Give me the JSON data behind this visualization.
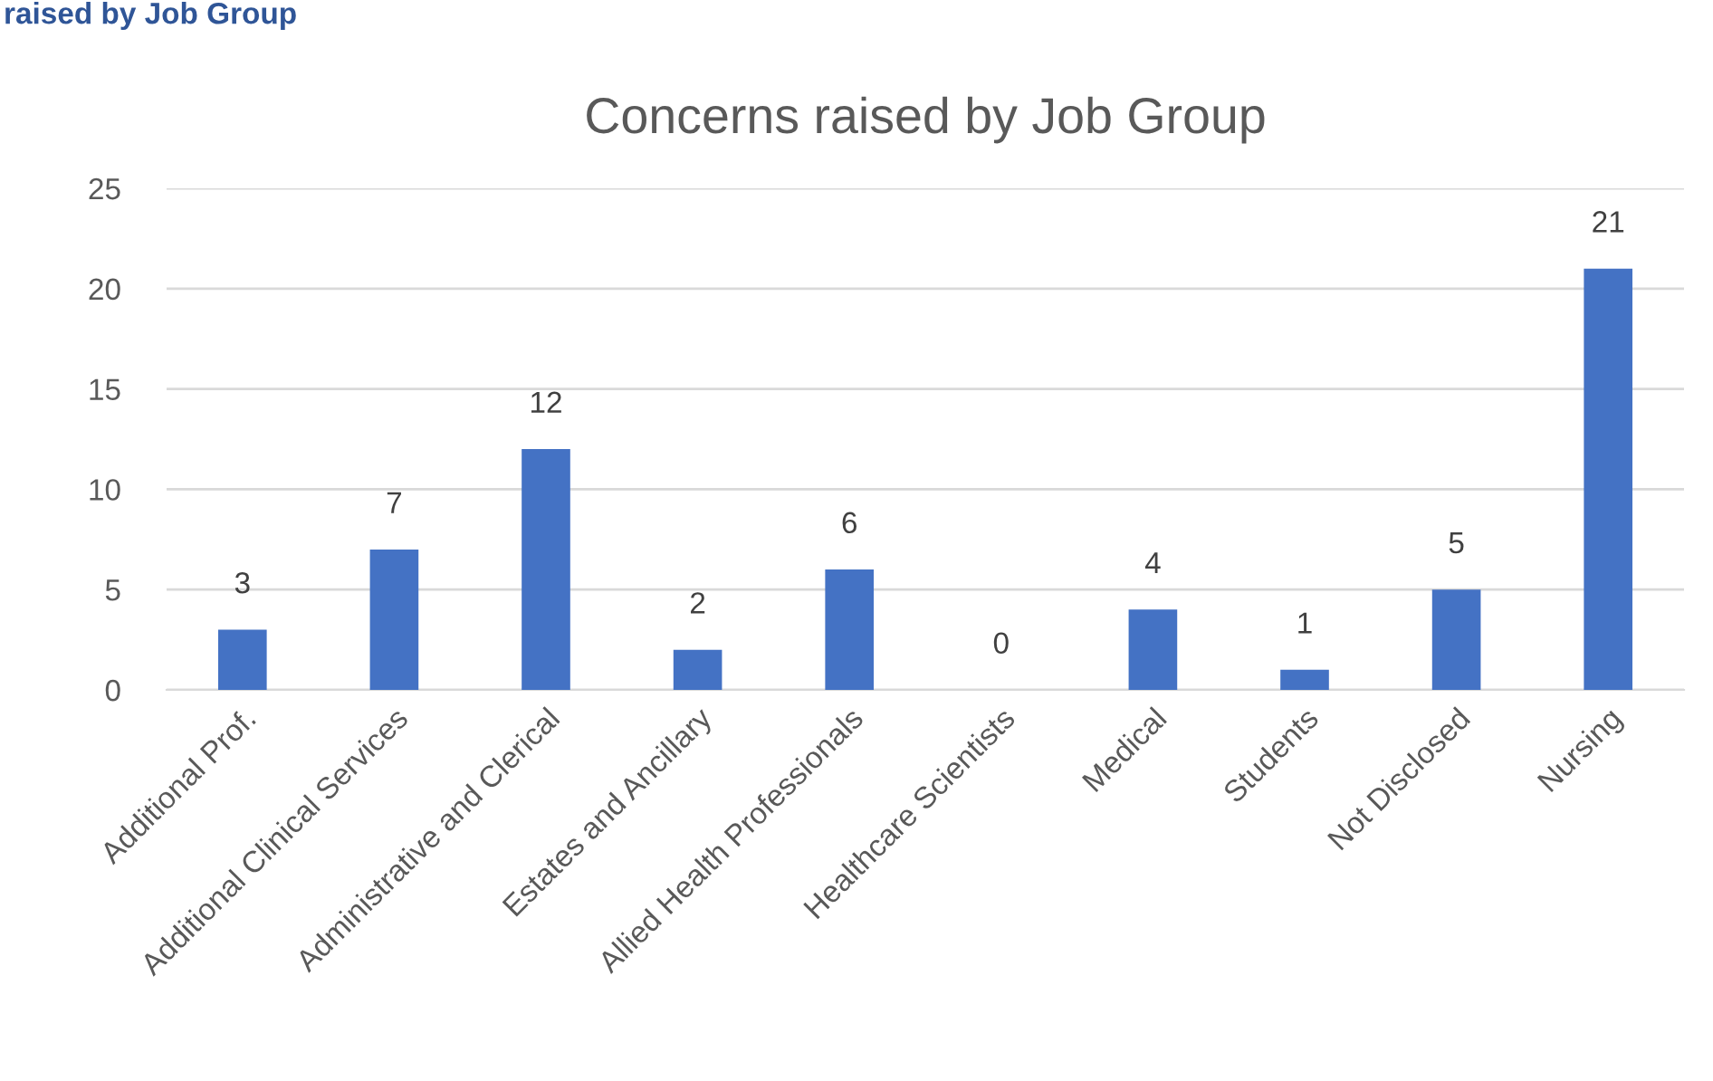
{
  "chart_data": {
    "type": "bar",
    "title": "Concerns raised by Job Group",
    "categories": [
      "Additional Prof.",
      "Additional Clinical Services",
      "Administrative and Clerical",
      "Estates and Ancillary",
      "Allied Health Professionals",
      "Healthcare Scientists",
      "Medical",
      "Students",
      "Not Disclosed",
      "Nursing"
    ],
    "values": [
      3,
      7,
      12,
      2,
      6,
      0,
      4,
      1,
      5,
      21
    ],
    "color": "#4472c4",
    "ylim": [
      0,
      25
    ],
    "yticks": [
      0,
      5,
      10,
      15,
      20,
      25
    ],
    "grid": "y",
    "data_labels": true,
    "annotations": [
      "raised by Job Group"
    ]
  }
}
